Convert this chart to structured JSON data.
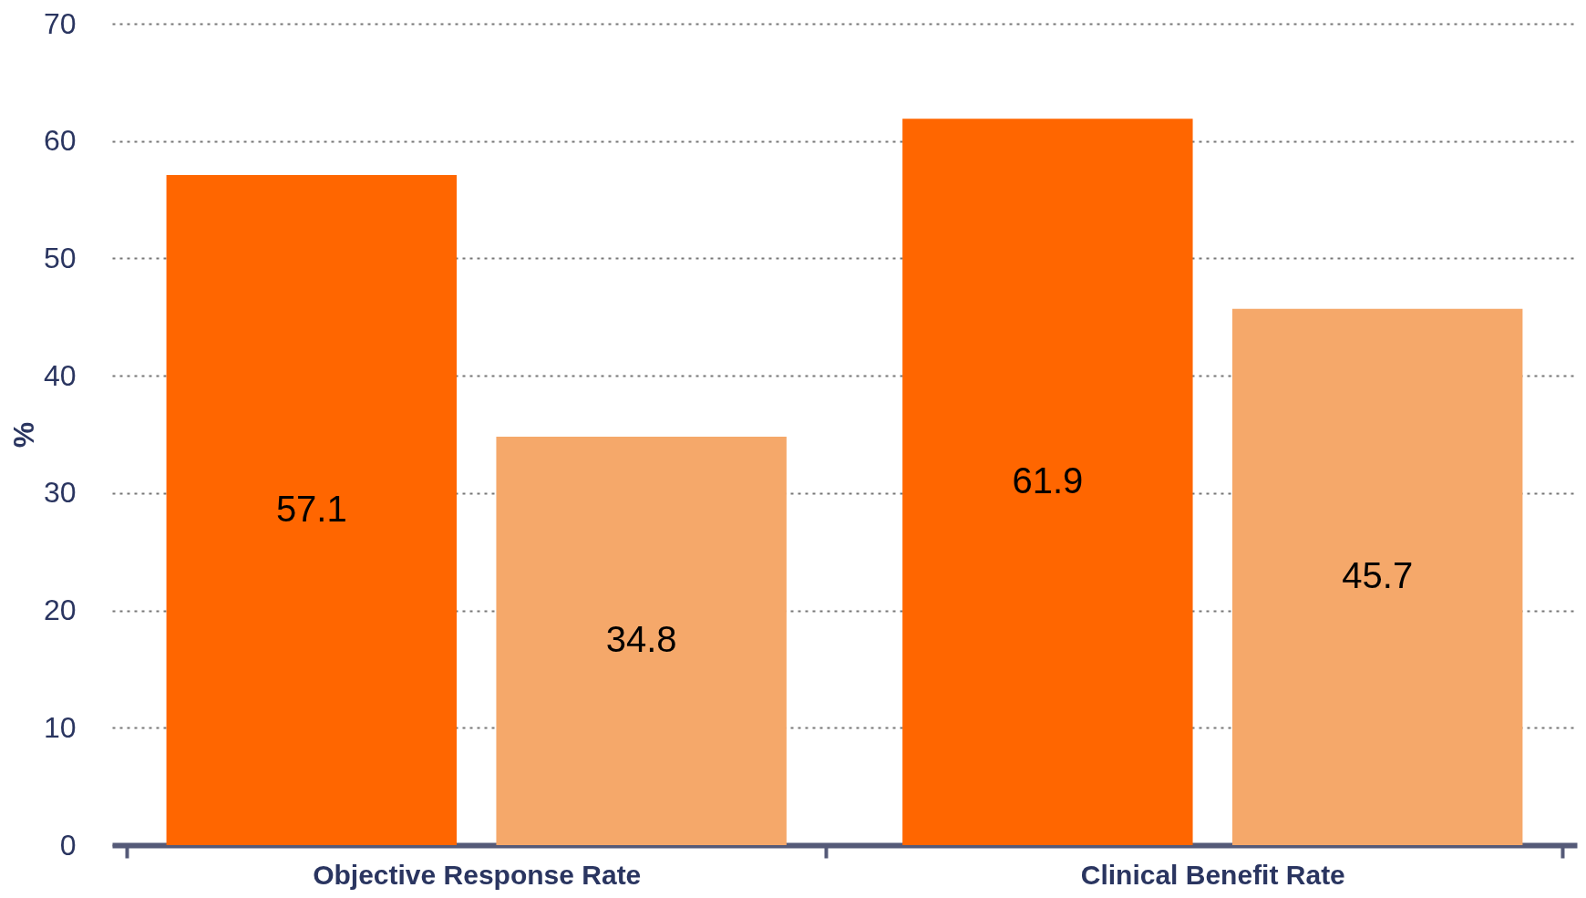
{
  "chart_data": {
    "type": "bar",
    "categories": [
      "Objective Response Rate",
      "Clinical Benefit Rate"
    ],
    "series": [
      {
        "color": "#ff6600",
        "values": [
          57.1,
          61.9
        ]
      },
      {
        "color": "#f5a86a",
        "values": [
          34.8,
          45.7
        ]
      }
    ],
    "ylabel": "%",
    "ylim": [
      0,
      70
    ],
    "yticks": [
      0,
      10,
      20,
      30,
      40,
      50,
      60,
      70
    ],
    "grid": "y",
    "data_labels": true,
    "legend": false
  }
}
